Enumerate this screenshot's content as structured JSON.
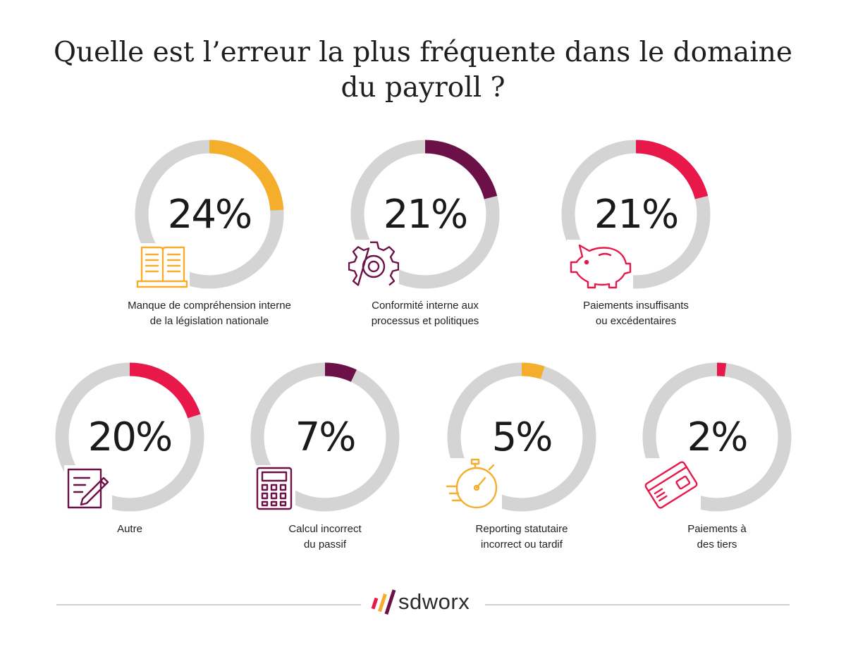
{
  "title_lines": [
    "Quelle est l’erreur la plus fréquente dans le domaine",
    "du payroll ?"
  ],
  "chart_data": {
    "type": "pie",
    "title": "Quelle est l’erreur la plus fréquente dans le domaine du payroll ?",
    "items": [
      {
        "value": 24,
        "value_label": "24%",
        "label_lines": [
          "Manque de compréhension interne",
          "de la législation nationale"
        ],
        "color": "#f5ae2b",
        "icon": "book-icon"
      },
      {
        "value": 21,
        "value_label": "21%",
        "label_lines": [
          "Conformité interne aux",
          "processus et politiques"
        ],
        "color": "#6b1147",
        "icon": "gear-icon"
      },
      {
        "value": 21,
        "value_label": "21%",
        "label_lines": [
          "Paiements insuffisants",
          "ou excédentaires"
        ],
        "color": "#e8194a",
        "icon": "piggy-bank-icon"
      },
      {
        "value": 20,
        "value_label": "20%",
        "label_lines": [
          "Autre"
        ],
        "color": "#e8194a",
        "icon": "notepad-pen-icon"
      },
      {
        "value": 7,
        "value_label": "7%",
        "label_lines": [
          "Calcul incorrect",
          "du passif"
        ],
        "color": "#6b1147",
        "icon": "calculator-icon"
      },
      {
        "value": 5,
        "value_label": "5%",
        "label_lines": [
          "Reporting statutaire",
          "incorrect ou tardif"
        ],
        "color": "#f5ae2b",
        "icon": "stopwatch-icon"
      },
      {
        "value": 2,
        "value_label": "2%",
        "label_lines": [
          "Paiements à",
          "des tiers"
        ],
        "color": "#e8194a",
        "icon": "credit-card-icon"
      }
    ],
    "track_color": "#d4d4d4"
  },
  "footer": {
    "logo_text": "sdworx",
    "logo_colors": [
      "#e8194a",
      "#f5ae2b",
      "#6b1147"
    ]
  }
}
